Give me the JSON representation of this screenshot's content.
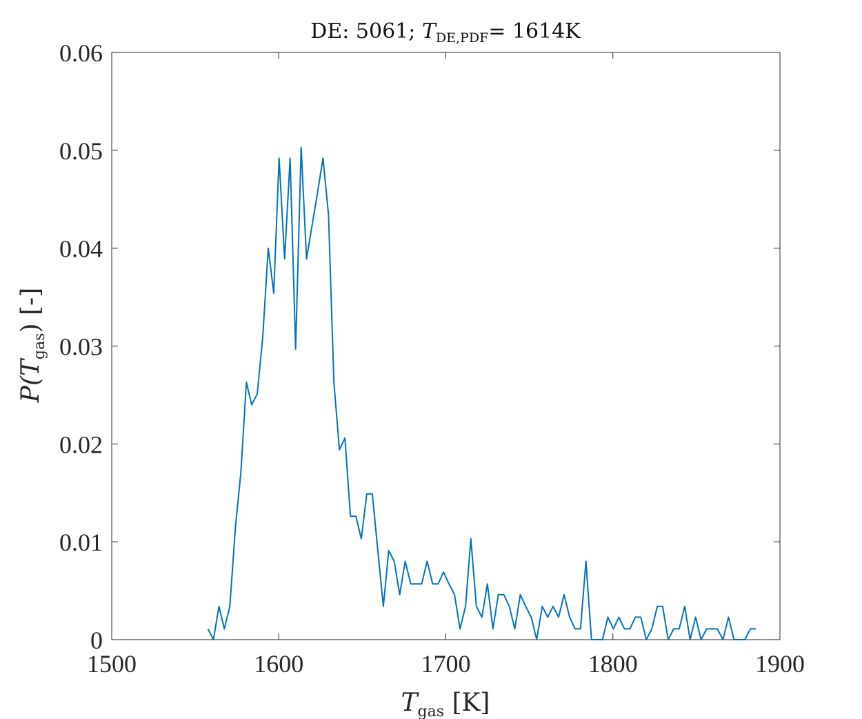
{
  "chart_data": {
    "type": "line",
    "title": {
      "prefix": "DE: 5061; ",
      "var": "T",
      "var_sub": "DE,PDF",
      "suffix": "= 1614K"
    },
    "xlabel": {
      "var": "T",
      "var_sub": "gas",
      "unit": " [K]"
    },
    "ylabel": {
      "func": "P(",
      "var": "T",
      "var_sub": "gas",
      "close": ")",
      "unit": " [-]"
    },
    "xlim": [
      1500,
      1900
    ],
    "ylim": [
      0,
      0.06
    ],
    "xticks": [
      1500,
      1600,
      1700,
      1800,
      1900
    ],
    "xtick_labels": [
      "1500",
      "1600",
      "1700",
      "1800",
      "1900"
    ],
    "yticks": [
      0,
      0.01,
      0.02,
      0.03,
      0.04,
      0.05,
      0.06
    ],
    "ytick_labels": [
      "0",
      "0.01",
      "0.02",
      "0.03",
      "0.04",
      "0.05",
      "0.06"
    ],
    "grid": false,
    "box": true,
    "line_color": "#0072BD",
    "series": [
      {
        "x": [
          1557.6,
          1560.9,
          1564.2,
          1567.4,
          1570.7,
          1574.0,
          1577.3,
          1580.6,
          1583.8,
          1587.1,
          1590.4,
          1593.7,
          1597.0,
          1600.2,
          1603.5,
          1606.8,
          1610.1,
          1613.4,
          1616.6,
          1619.9,
          1623.2,
          1626.5,
          1629.8,
          1633.0,
          1636.3,
          1639.6,
          1642.9,
          1646.2,
          1649.4,
          1652.7,
          1656.0,
          1659.3,
          1662.6,
          1665.8,
          1669.1,
          1672.4,
          1675.7,
          1679.0,
          1682.2,
          1685.5,
          1688.8,
          1692.1,
          1695.4,
          1698.6,
          1701.9,
          1705.2,
          1708.5,
          1711.8,
          1715.0,
          1718.3,
          1721.6,
          1724.9,
          1728.2,
          1731.4,
          1734.7,
          1738.0,
          1741.3,
          1744.6,
          1747.8,
          1751.1,
          1754.4,
          1757.7,
          1761.0,
          1764.2,
          1767.5,
          1770.8,
          1774.1,
          1777.4,
          1780.6,
          1783.9,
          1787.2,
          1790.5,
          1793.8,
          1797.0,
          1800.3,
          1803.6,
          1806.9,
          1810.2,
          1813.4,
          1816.7,
          1820.0,
          1823.3,
          1826.6,
          1829.8,
          1833.1,
          1836.4,
          1839.7,
          1843.0,
          1846.2,
          1849.5,
          1852.8,
          1856.1,
          1859.4,
          1862.6,
          1865.9,
          1869.2,
          1872.5,
          1875.8,
          1879.0,
          1882.3,
          1885.6
        ],
        "values": [
          0.0011,
          0.0,
          0.0034,
          0.0011,
          0.0034,
          0.0114,
          0.0171,
          0.0263,
          0.024,
          0.0251,
          0.0309,
          0.04,
          0.0354,
          0.0492,
          0.0389,
          0.0492,
          0.0297,
          0.0503,
          0.0389,
          0.0423,
          0.0457,
          0.0492,
          0.0434,
          0.0263,
          0.0194,
          0.0206,
          0.0126,
          0.0126,
          0.0103,
          0.0149,
          0.0149,
          0.0091,
          0.0034,
          0.0091,
          0.008,
          0.0046,
          0.008,
          0.0057,
          0.0057,
          0.0057,
          0.008,
          0.0057,
          0.0057,
          0.0069,
          0.0057,
          0.0046,
          0.0011,
          0.0034,
          0.0103,
          0.0034,
          0.0023,
          0.0057,
          0.0011,
          0.0046,
          0.0046,
          0.0034,
          0.0011,
          0.0046,
          0.0034,
          0.0023,
          0.0,
          0.0034,
          0.0023,
          0.0034,
          0.0023,
          0.0046,
          0.0023,
          0.0011,
          0.0011,
          0.008,
          0.0,
          0.0,
          0.0,
          0.0023,
          0.0011,
          0.0023,
          0.0011,
          0.0011,
          0.0023,
          0.0023,
          0.0,
          0.0011,
          0.0034,
          0.0034,
          0.0,
          0.0011,
          0.0011,
          0.0034,
          0.0,
          0.0023,
          0.0,
          0.0011,
          0.0011,
          0.0011,
          0.0,
          0.0023,
          0.0,
          0.0,
          0.0,
          0.0011,
          0.0011
        ]
      }
    ]
  }
}
